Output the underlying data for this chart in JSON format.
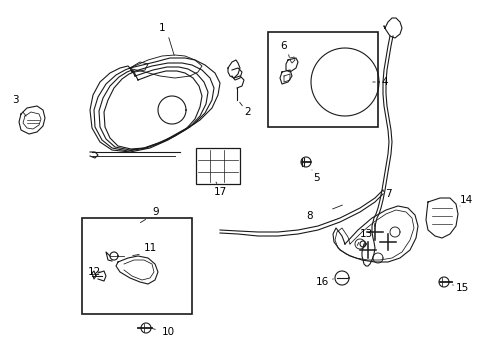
{
  "background_color": "#ffffff",
  "line_color": "#1a1a1a",
  "label_color": "#000000",
  "fig_w": 4.9,
  "fig_h": 3.6,
  "dpi": 100
}
